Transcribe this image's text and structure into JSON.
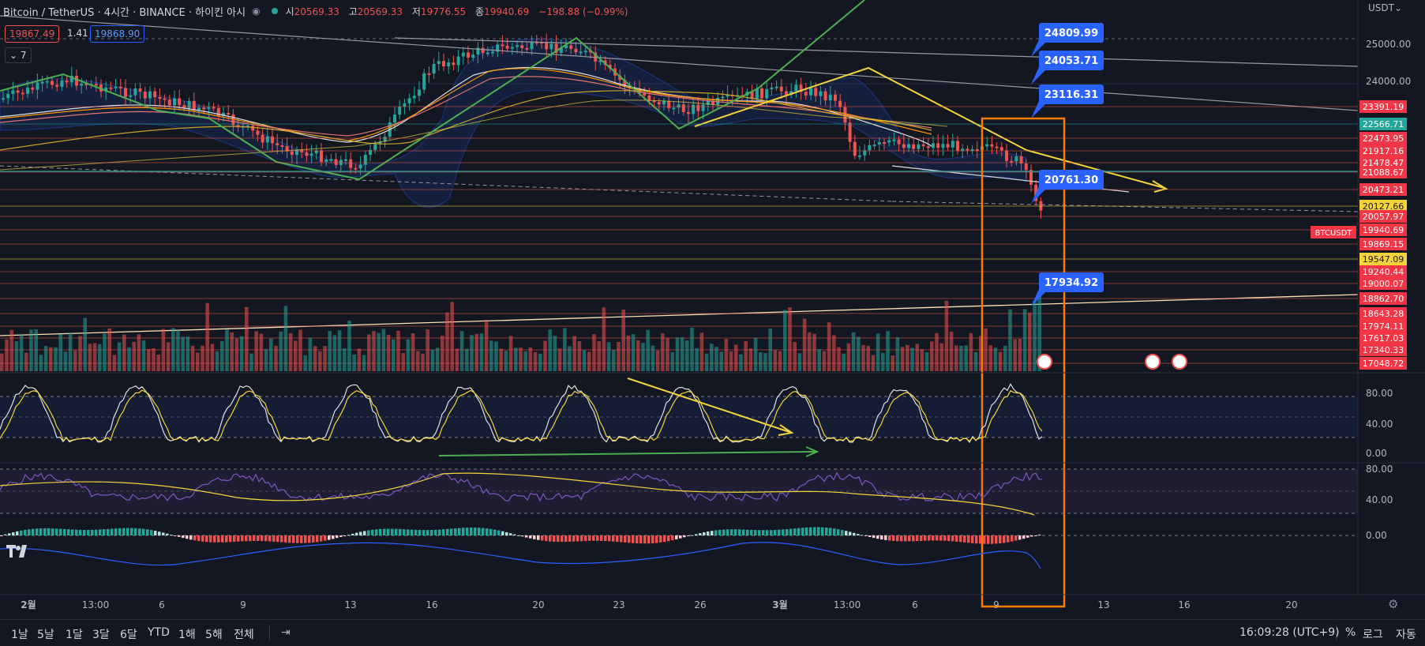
{
  "header": {
    "symbol": "Bitcoin / TetherUS · 4시간 · BINANCE · 하이킨 아시",
    "open_label": "시",
    "open": "20569.33",
    "high_label": "고",
    "high": "20569.33",
    "low_label": "저",
    "low": "19776.55",
    "close_label": "종",
    "close": "19940.69",
    "change": "−198.88 (−0.99%)"
  },
  "quote": {
    "bid": "19867.49",
    "spread": "1.41",
    "ask": "19868.90"
  },
  "indicators_toggle": "7",
  "currency": "USDT",
  "colors": {
    "bg": "#131722",
    "up": "#26a69a",
    "down": "#ef5350",
    "blue_label": "#2962ff",
    "orange_box": "#f57c00",
    "yellow": "#f5d33a",
    "green_line": "#4caf50"
  },
  "time_axis": [
    {
      "t": "2월",
      "bold": true
    },
    {
      "t": "13:00"
    },
    {
      "t": "6"
    },
    {
      "t": "9"
    },
    {
      "t": "13"
    },
    {
      "t": "16"
    },
    {
      "t": "20"
    },
    {
      "t": "23"
    },
    {
      "t": "26"
    },
    {
      "t": "3월",
      "bold": true
    },
    {
      "t": "13:00"
    },
    {
      "t": "6"
    },
    {
      "t": "9"
    },
    {
      "t": "13"
    },
    {
      "t": "16"
    },
    {
      "t": "20"
    }
  ],
  "price_axis": [
    "25000.00",
    "24000.00"
  ],
  "level_labels": [
    {
      "v": "23391.19",
      "c": "red"
    },
    {
      "v": "22566.71",
      "c": "green"
    },
    {
      "v": "22473.95",
      "c": "red"
    },
    {
      "v": "21917.16",
      "c": "red"
    },
    {
      "v": "21478.47",
      "c": "red"
    },
    {
      "v": "21088.67",
      "c": "red"
    },
    {
      "v": "20473.21",
      "c": "red"
    },
    {
      "v": "20127.66",
      "c": "yellow"
    },
    {
      "v": "20057.97",
      "c": "red"
    },
    {
      "v": "19940.69",
      "c": "red"
    },
    {
      "v": "19869.15",
      "c": "red"
    },
    {
      "v": "19547.09",
      "c": "yellow"
    },
    {
      "v": "19240.44",
      "c": "red"
    },
    {
      "v": "19000.07",
      "c": "red"
    },
    {
      "v": "18862.70",
      "c": "red"
    },
    {
      "v": "18643.28",
      "c": "red"
    },
    {
      "v": "17974.11",
      "c": "red"
    },
    {
      "v": "17617.03",
      "c": "red"
    },
    {
      "v": "17340.33",
      "c": "red"
    },
    {
      "v": "17048.72",
      "c": "red"
    }
  ],
  "symbol_tag": "BTCUSDT",
  "callouts": [
    "24809.99",
    "24053.71",
    "23116.31",
    "20761.30",
    "17934.92"
  ],
  "stoch_axis": [
    "80.00",
    "40.00",
    "0.00"
  ],
  "rsi_axis": [
    "80.00",
    "40.00"
  ],
  "macd_axis": [
    "0.00"
  ],
  "bottom": {
    "ranges": [
      "1날",
      "5날",
      "1달",
      "3달",
      "6달",
      "YTD",
      "1해",
      "5해",
      "전체"
    ],
    "clock": "16:09:28 (UTC+9)",
    "pct": "%",
    "log": "로그",
    "auto": "자동"
  },
  "chart_data": {
    "type": "candlestick",
    "title": "Bitcoin / TetherUS · 4시간 · BINANCE · 하이킨 아시",
    "timeframe": "4시간",
    "y_axis": {
      "label": "USDT",
      "ticks": [
        24000,
        25000
      ]
    },
    "x_ticks": [
      "2월",
      "13:00",
      "6",
      "9",
      "13",
      "16",
      "20",
      "23",
      "26",
      "3월",
      "13:00",
      "6",
      "9",
      "13",
      "16",
      "20"
    ],
    "last": {
      "open": 20569.33,
      "high": 20569.33,
      "low": 19776.55,
      "close": 19940.69,
      "change": -198.88,
      "change_pct": -0.99
    },
    "horizontal_levels": [
      23391.19,
      22566.71,
      22473.95,
      21917.16,
      21478.47,
      21088.67,
      20473.21,
      20127.66,
      20057.97,
      19940.69,
      19869.15,
      19547.09,
      19240.44,
      19000.07,
      18862.7,
      18643.28,
      17974.11,
      17617.03,
      17340.33,
      17048.72
    ],
    "price_callouts": [
      24809.99,
      24053.71,
      23116.31,
      20761.3,
      17934.92
    ],
    "panes": [
      "price",
      "volume",
      "stochastic",
      "rsi",
      "macd"
    ],
    "oscillator_axis_ticks": [
      0,
      40,
      80
    ]
  }
}
